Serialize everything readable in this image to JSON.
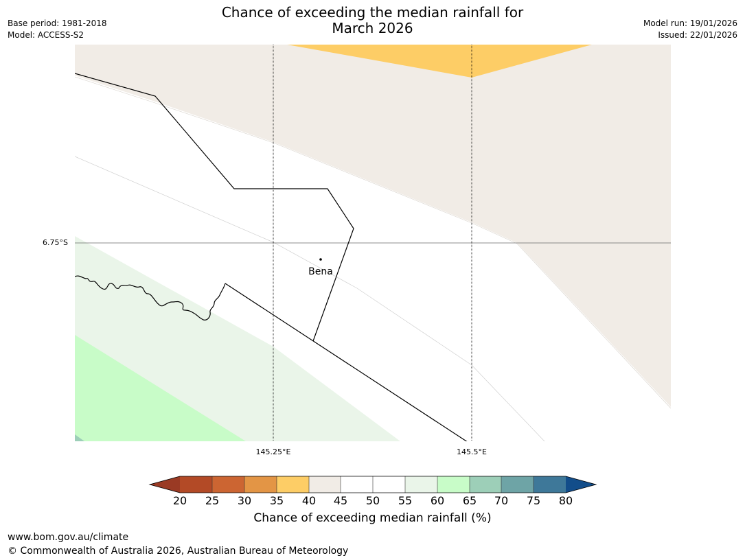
{
  "header": {
    "title_line1": "Chance of exceeding the median rainfall for",
    "title_line2": "March 2026",
    "base_period": "Base period: 1981-2018",
    "model": "Model: ACCESS-S2",
    "model_run": "Model run: 19/01/2026",
    "issued": "Issued: 22/01/2026"
  },
  "map": {
    "lat_label": "6.75°S",
    "lon_labels": [
      "145.25°E",
      "145.5°E"
    ],
    "place": {
      "name": "Bena"
    }
  },
  "colorbar": {
    "title": "Chance of exceeding median rainfall (%)",
    "ticks": [
      "20",
      "25",
      "30",
      "35",
      "40",
      "45",
      "50",
      "55",
      "60",
      "65",
      "70",
      "75",
      "80"
    ],
    "colors": {
      "under": "#9a3a24",
      "c20_25": "#b34a26",
      "c25_30": "#cc6532",
      "c30_35": "#e39545",
      "c35_40": "#fdcd66",
      "c40_45": "#f1ece6",
      "c45_55": "#ffffff",
      "c55_60": "#eaf5e9",
      "c60_65": "#c8fcc8",
      "c65_70": "#9dcfb8",
      "c70_75": "#6ea4a6",
      "c75_80": "#3e7899",
      "over": "#124d8a"
    }
  },
  "footer": {
    "url": "www.bom.gov.au/climate",
    "copyright": "© Commonwealth of Australia 2026, Australian Bureau of Meteorology"
  }
}
